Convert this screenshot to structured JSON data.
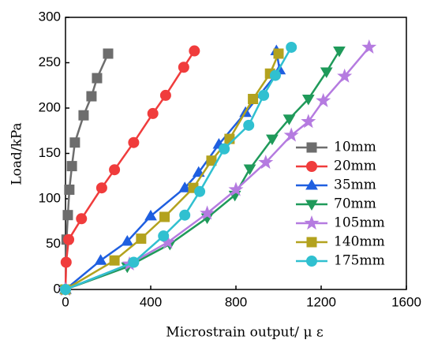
{
  "chart_data": {
    "type": "line",
    "xlabel": "Microstrain output/ μ ε",
    "ylabel": "Load/kPa",
    "xlim": [
      0,
      1600
    ],
    "xticks": [
      0,
      400,
      800,
      1200,
      1600
    ],
    "ylim": [
      0,
      300
    ],
    "yticks": [
      0,
      50,
      100,
      150,
      200,
      250,
      300
    ],
    "legend": "right",
    "series": [
      {
        "name": "10mm",
        "color": "#6d6d6d",
        "marker": "square",
        "x": [
          0,
          5,
          11,
          18,
          30,
          44,
          85,
          122,
          148,
          200
        ],
        "values": [
          0,
          55,
          82,
          110,
          136,
          162,
          192,
          213,
          233,
          260
        ]
      },
      {
        "name": "20mm",
        "color": "#f03c3c",
        "marker": "circle",
        "x": [
          0,
          3,
          15,
          75,
          170,
          230,
          320,
          410,
          470,
          555,
          605
        ],
        "values": [
          0,
          30,
          55,
          78,
          112,
          132,
          162,
          194,
          214,
          245,
          263
        ]
      },
      {
        "name": "35mm",
        "color": "#1f5fe0",
        "marker": "triangle-up",
        "x": [
          0,
          165,
          290,
          400,
          560,
          625,
          720,
          845,
          1005,
          990
        ],
        "values": [
          0,
          32,
          53,
          81,
          112,
          129,
          160,
          195,
          242,
          263
        ]
      },
      {
        "name": "70mm",
        "color": "#1f9a5a",
        "marker": "triangle-down",
        "x": [
          0,
          290,
          490,
          665,
          795,
          865,
          970,
          1050,
          1140,
          1225,
          1285
        ],
        "values": [
          0,
          25,
          50,
          79,
          104,
          133,
          166,
          188,
          210,
          240,
          263
        ]
      },
      {
        "name": "105mm",
        "color": "#b57be0",
        "marker": "star",
        "x": [
          0,
          300,
          480,
          665,
          800,
          940,
          1060,
          1140,
          1210,
          1310,
          1425
        ],
        "values": [
          0,
          28,
          52,
          84,
          110,
          140,
          170,
          185,
          208,
          235,
          267
        ]
      },
      {
        "name": "140mm",
        "color": "#b3a21e",
        "marker": "square",
        "x": [
          0,
          230,
          355,
          465,
          600,
          685,
          770,
          880,
          960,
          1000
        ],
        "values": [
          0,
          32,
          56,
          80,
          112,
          142,
          166,
          210,
          238,
          260
        ]
      },
      {
        "name": "175mm",
        "color": "#30c0d0",
        "marker": "circle",
        "x": [
          0,
          320,
          460,
          560,
          630,
          745,
          860,
          930,
          985,
          1060
        ],
        "values": [
          0,
          30,
          59,
          82,
          108,
          155,
          181,
          214,
          236,
          267
        ]
      }
    ]
  }
}
